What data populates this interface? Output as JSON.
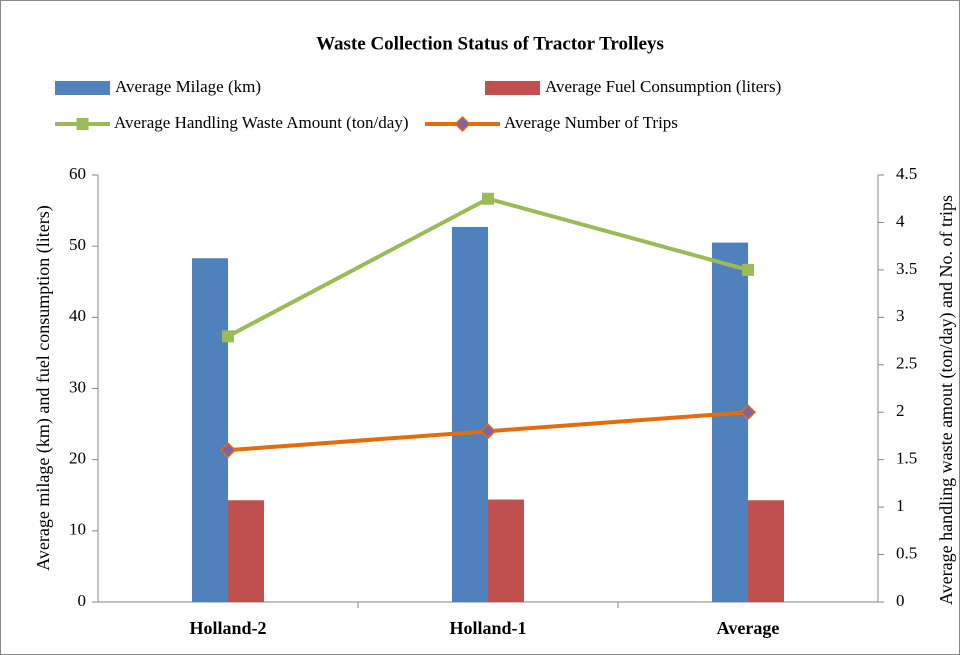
{
  "chart_data": {
    "type": "bar",
    "title": "Waste Collection Status of Tractor Trolleys",
    "categories": [
      "Holland-2",
      "Holland-1",
      "Average"
    ],
    "series": [
      {
        "name": "Average Milage (km)",
        "color": "#4f81bd",
        "kind": "bar",
        "values": [
          48.3,
          52.7,
          50.5
        ]
      },
      {
        "name": "Average Fuel Consumption (liters)",
        "color": "#c0504d",
        "kind": "bar",
        "values": [
          14.3,
          14.4,
          14.3
        ]
      },
      {
        "name": "Average Handling  Waste Amount (ton/day)",
        "color": "#9bbb59",
        "kind": "line",
        "marker": "square",
        "axis": "y2",
        "values": [
          2.8,
          4.25,
          3.5
        ]
      },
      {
        "name": "Average Number of Trips",
        "color": "#e46c0a",
        "kind": "line",
        "marker": "diamond",
        "marker_color": "#8064a2",
        "axis": "y2",
        "values": [
          1.6,
          1.8,
          2.0
        ]
      }
    ],
    "ylabel": "Average milage (km) and fuel consumption (liters)",
    "y2label": "Average handling waste amout (ton/day) and No. of trips",
    "ylim": [
      0,
      60
    ],
    "yticks": [
      0,
      10,
      20,
      30,
      40,
      50,
      60
    ],
    "y2lim": [
      0,
      4.5
    ],
    "y2ticks": [
      0,
      0.5,
      1,
      1.5,
      2,
      2.5,
      3,
      3.5,
      4,
      4.5
    ],
    "grid": false
  }
}
